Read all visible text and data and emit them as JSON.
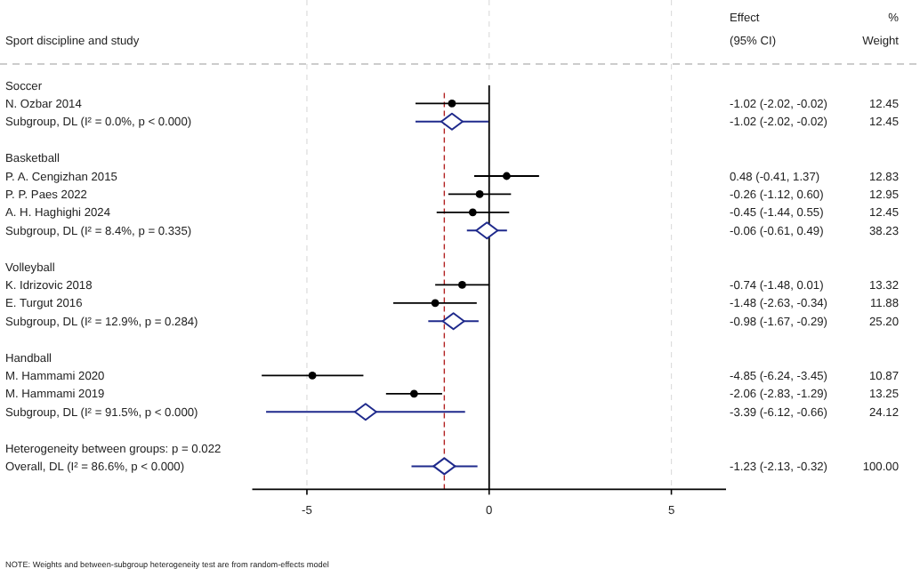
{
  "chart_data": {
    "type": "scatter",
    "orientation": "horizontal",
    "ylabel": "Sport discipline and study",
    "categories": [
      "Soccer",
      "N. Ozbar 2014",
      "Subgroup, DL (I² = 0.0%, p < 0.000)",
      null,
      "Basketball",
      "P. A. Cengizhan 2015",
      "P. P. Paes 2022",
      "A. H. Haghighi 2024",
      "Subgroup, DL (I² = 8.4%, p = 0.335)",
      null,
      "Volleyball",
      "K. Idrizovic 2018",
      "E. Turgut 2016",
      "Subgroup, DL (I² = 12.9%, p = 0.284)",
      null,
      "Handball",
      "M. Hammami 2020",
      "M. Hammami 2019",
      "Subgroup, DL (I² = 91.5%, p < 0.000)",
      null,
      "Heterogeneity between groups: p = 0.022",
      "Overall, DL (I² = 86.6%, p < 0.000)"
    ],
    "series": [
      {
        "marker": "circle",
        "color": "#000000",
        "values": [
          null,
          -1.02,
          null,
          null,
          null,
          0.48,
          -0.26,
          -0.45,
          null,
          null,
          null,
          -0.74,
          -1.48,
          null,
          null,
          null,
          -4.85,
          -2.06,
          null,
          null,
          null,
          null
        ],
        "errors": [
          null,
          [
            -2.02,
            -0.02
          ],
          null,
          null,
          null,
          [
            -0.41,
            1.37
          ],
          [
            -1.12,
            0.6
          ],
          [
            -1.44,
            0.55
          ],
          null,
          null,
          null,
          [
            -1.48,
            0.01
          ],
          [
            -2.63,
            -0.34
          ],
          null,
          null,
          null,
          [
            -6.24,
            -3.45
          ],
          [
            -2.83,
            -1.29
          ],
          null,
          null,
          null,
          null
        ],
        "value_labels": [
          null,
          "-1.02 (-2.02, -0.02) 12.45",
          null,
          null,
          null,
          "0.48 (-0.41, 1.37) 12.83",
          "-0.26 (-1.12, 0.60) 12.95",
          "-0.45 (-1.44, 0.55) 12.45",
          null,
          null,
          null,
          "-0.74 (-1.48, 0.01) 13.32",
          "-1.48 (-2.63, -0.34) 11.88",
          null,
          null,
          null,
          "-4.85 (-6.24, -3.45) 10.87",
          "-2.06 (-2.83, -1.29) 13.25",
          null,
          null,
          null,
          null
        ]
      },
      {
        "marker": "diamond",
        "color": "#1f2a8c",
        "values": [
          null,
          null,
          -1.02,
          null,
          null,
          null,
          null,
          null,
          -0.06,
          null,
          null,
          null,
          null,
          -0.98,
          null,
          null,
          null,
          null,
          -3.39,
          null,
          null,
          -1.23
        ],
        "errors": [
          null,
          null,
          [
            -2.02,
            -0.02
          ],
          null,
          null,
          null,
          null,
          null,
          [
            -0.61,
            0.49
          ],
          null,
          null,
          null,
          null,
          [
            -1.67,
            -0.29
          ],
          null,
          null,
          null,
          null,
          [
            -6.12,
            -0.66
          ],
          null,
          null,
          [
            -2.13,
            -0.32
          ]
        ],
        "value_labels": [
          null,
          null,
          "-1.02 (-2.02, -0.02) 12.45",
          null,
          null,
          null,
          null,
          null,
          "-0.06 (-0.61, 0.49) 38.23",
          null,
          null,
          null,
          null,
          "-0.98 (-1.67, -0.29) 25.20",
          null,
          null,
          null,
          null,
          "-3.39 (-6.12, -0.66) 24.12",
          null,
          null,
          "-1.23 (-2.13, -0.32) 100.00"
        ]
      }
    ],
    "ref_lines": [
      {
        "axis": "x",
        "value": 0,
        "color": "#000000",
        "line_style": "solid"
      },
      {
        "axis": "x",
        "value": -1.23,
        "color": "#b22222",
        "line_style": "dashed"
      }
    ],
    "xlim": [
      -6.5,
      6.5
    ],
    "xticks": [
      -5,
      0,
      5
    ],
    "grid": "x",
    "annotations": [
      "Effect",
      "(95% CI)",
      "%",
      "Weight",
      "NOTE: Weights and between-subgroup heterogeneity test are from random-effects model"
    ]
  }
}
